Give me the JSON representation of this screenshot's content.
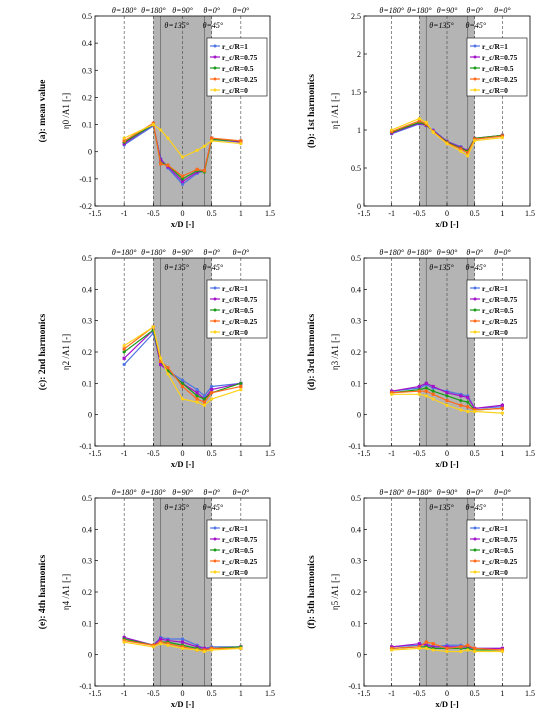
{
  "colors": {
    "r1": "#4f74e3",
    "r075": "#a311c9",
    "r05": "#1a9a1a",
    "r025": "#ff6a1a",
    "r0": "#ffd21a",
    "shade": "#b4b4b4",
    "shade_dark": "#8a8a8a"
  },
  "common": {
    "xlabel": "x/D [-]",
    "x_ticks": [
      "-1.5",
      "-1",
      "-0.5",
      "0",
      "0.5",
      "1",
      "1.5"
    ],
    "xlim": [
      -1.5,
      1.5
    ],
    "theta_labels": [
      "θ=180°",
      "θ=180°",
      "θ=90°",
      "θ=0°",
      "θ=0°"
    ],
    "theta_mid_labels": [
      "θ=135°",
      "θ=45°"
    ],
    "legend_labels": [
      "r_c/R=1",
      "r_c/R=0.75",
      "r_c/R=0.5",
      "r_c/R=0.25",
      "r_c/R=0"
    ],
    "legend_placement": "top-right"
  },
  "chart_data": [
    {
      "type": "line",
      "panel_label": "(a): mean value",
      "ylabel": "η0 /A1 [-]",
      "ylim": [
        -0.2,
        0.5
      ],
      "y_ticks": [
        "-0.2",
        "-0.1",
        "0",
        "0.1",
        "0.2",
        "0.3",
        "0.4",
        "0.5"
      ],
      "x": [
        -1,
        -0.5,
        -0.375,
        -0.25,
        0,
        0.25,
        0.375,
        0.5,
        1
      ],
      "series": [
        {
          "name": "r_c/R=1",
          "values": [
            0.025,
            0.095,
            -0.025,
            -0.06,
            -0.12,
            -0.08,
            -0.07,
            0.045,
            0.035
          ]
        },
        {
          "name": "r_c/R=0.75",
          "values": [
            0.03,
            0.1,
            -0.03,
            -0.055,
            -0.11,
            -0.075,
            -0.07,
            0.05,
            0.035
          ]
        },
        {
          "name": "r_c/R=0.5",
          "values": [
            0.035,
            0.1,
            -0.04,
            -0.05,
            -0.1,
            -0.07,
            -0.075,
            0.045,
            0.04
          ]
        },
        {
          "name": "r_c/R=0.25",
          "values": [
            0.04,
            0.105,
            -0.045,
            -0.05,
            -0.09,
            -0.065,
            -0.07,
            0.05,
            0.04
          ]
        },
        {
          "name": "r_c/R=0",
          "values": [
            0.05,
            0.1,
            0.08,
            0.05,
            -0.02,
            0.005,
            0.02,
            0.04,
            0.03
          ]
        }
      ]
    },
    {
      "type": "line",
      "panel_label": "(b): 1st harmonics",
      "ylabel": "η1 /A1 [-]",
      "ylim": [
        0,
        2.5
      ],
      "y_ticks": [
        "0",
        "0.5",
        "1",
        "1.5",
        "2",
        "2.5"
      ],
      "x": [
        -1,
        -0.5,
        -0.375,
        -0.25,
        0,
        0.25,
        0.375,
        0.5,
        1
      ],
      "series": [
        {
          "name": "r_c/R=1",
          "values": [
            0.95,
            1.08,
            1.06,
            1.0,
            0.85,
            0.78,
            0.72,
            0.88,
            0.92
          ]
        },
        {
          "name": "r_c/R=0.75",
          "values": [
            0.96,
            1.09,
            1.06,
            0.99,
            0.85,
            0.77,
            0.73,
            0.89,
            0.93
          ]
        },
        {
          "name": "r_c/R=0.5",
          "values": [
            0.97,
            1.1,
            1.07,
            0.98,
            0.84,
            0.76,
            0.72,
            0.89,
            0.93
          ]
        },
        {
          "name": "r_c/R=0.25",
          "values": [
            0.98,
            1.12,
            1.08,
            0.98,
            0.83,
            0.75,
            0.7,
            0.88,
            0.92
          ]
        },
        {
          "name": "r_c/R=0",
          "values": [
            1.0,
            1.15,
            1.1,
            0.97,
            0.82,
            0.72,
            0.66,
            0.86,
            0.9
          ]
        }
      ]
    },
    {
      "type": "line",
      "panel_label": "(c): 2nd harmonics",
      "ylabel": "η2 /A1 [-]",
      "ylim": [
        -0.1,
        0.5
      ],
      "y_ticks": [
        "-0.1",
        "0",
        "0.1",
        "0.2",
        "0.3",
        "0.4",
        "0.5"
      ],
      "x": [
        -1,
        -0.5,
        -0.375,
        -0.25,
        0,
        0.25,
        0.375,
        0.5,
        1
      ],
      "series": [
        {
          "name": "r_c/R=1",
          "values": [
            0.16,
            0.26,
            0.16,
            0.14,
            0.11,
            0.08,
            0.06,
            0.09,
            0.1
          ]
        },
        {
          "name": "r_c/R=0.75",
          "values": [
            0.18,
            0.27,
            0.16,
            0.14,
            0.1,
            0.07,
            0.05,
            0.08,
            0.1
          ]
        },
        {
          "name": "r_c/R=0.5",
          "values": [
            0.2,
            0.27,
            0.17,
            0.14,
            0.1,
            0.06,
            0.05,
            0.07,
            0.1
          ]
        },
        {
          "name": "r_c/R=0.25",
          "values": [
            0.21,
            0.28,
            0.17,
            0.15,
            0.09,
            0.05,
            0.04,
            0.07,
            0.09
          ]
        },
        {
          "name": "r_c/R=0",
          "values": [
            0.22,
            0.28,
            0.18,
            0.13,
            0.05,
            0.04,
            0.03,
            0.05,
            0.08
          ]
        }
      ]
    },
    {
      "type": "line",
      "panel_label": "(d): 3rd harmonics",
      "ylabel": "η3 /A1 [-]",
      "ylim": [
        -0.1,
        0.5
      ],
      "y_ticks": [
        "-0.1",
        "0",
        "0.1",
        "0.2",
        "0.3",
        "0.4",
        "0.5"
      ],
      "x": [
        -1,
        -0.5,
        -0.375,
        -0.25,
        0,
        0.25,
        0.375,
        0.5,
        1
      ],
      "series": [
        {
          "name": "r_c/R=1",
          "values": [
            0.075,
            0.085,
            0.095,
            0.085,
            0.075,
            0.065,
            0.06,
            0.02,
            0.025
          ]
        },
        {
          "name": "r_c/R=0.75",
          "values": [
            0.075,
            0.09,
            0.1,
            0.09,
            0.07,
            0.06,
            0.055,
            0.02,
            0.03
          ]
        },
        {
          "name": "r_c/R=0.5",
          "values": [
            0.07,
            0.08,
            0.085,
            0.075,
            0.06,
            0.045,
            0.04,
            0.015,
            0.02
          ]
        },
        {
          "name": "r_c/R=0.25",
          "values": [
            0.07,
            0.075,
            0.075,
            0.065,
            0.045,
            0.03,
            0.025,
            0.015,
            0.02
          ]
        },
        {
          "name": "r_c/R=0",
          "values": [
            0.065,
            0.065,
            0.06,
            0.05,
            0.03,
            0.015,
            0.01,
            0.01,
            0.005
          ]
        }
      ]
    },
    {
      "type": "line",
      "panel_label": "(e): 4th harmonics",
      "ylabel": "η4 /A1 [-]",
      "ylim": [
        -0.1,
        0.5
      ],
      "y_ticks": [
        "-0.1",
        "0",
        "0.1",
        "0.2",
        "0.3",
        "0.4",
        "0.5"
      ],
      "x": [
        -1,
        -0.5,
        -0.375,
        -0.25,
        0,
        0.25,
        0.375,
        0.5,
        1
      ],
      "series": [
        {
          "name": "r_c/R=1",
          "values": [
            0.055,
            0.03,
            0.055,
            0.05,
            0.05,
            0.03,
            0.02,
            0.025,
            0.025
          ]
        },
        {
          "name": "r_c/R=0.75",
          "values": [
            0.055,
            0.03,
            0.05,
            0.045,
            0.04,
            0.025,
            0.02,
            0.02,
            0.025
          ]
        },
        {
          "name": "r_c/R=0.5",
          "values": [
            0.05,
            0.03,
            0.04,
            0.04,
            0.03,
            0.02,
            0.015,
            0.02,
            0.025
          ]
        },
        {
          "name": "r_c/R=0.25",
          "values": [
            0.045,
            0.03,
            0.04,
            0.035,
            0.025,
            0.015,
            0.015,
            0.02,
            0.02
          ]
        },
        {
          "name": "r_c/R=0",
          "values": [
            0.04,
            0.025,
            0.035,
            0.03,
            0.02,
            0.015,
            0.01,
            0.015,
            0.02
          ]
        }
      ]
    },
    {
      "type": "line",
      "panel_label": "(f): 5th harmonics",
      "ylabel": "η5 /A1 [-]",
      "ylim": [
        -0.1,
        0.5
      ],
      "y_ticks": [
        "-0.1",
        "0",
        "0.1",
        "0.2",
        "0.3",
        "0.4",
        "0.5"
      ],
      "x": [
        -1,
        -0.5,
        -0.375,
        -0.25,
        0,
        0.25,
        0.375,
        0.5,
        1
      ],
      "series": [
        {
          "name": "r_c/R=1",
          "values": [
            0.025,
            0.03,
            0.035,
            0.025,
            0.03,
            0.03,
            0.025,
            0.02,
            0.02
          ]
        },
        {
          "name": "r_c/R=0.75",
          "values": [
            0.025,
            0.035,
            0.03,
            0.025,
            0.025,
            0.025,
            0.025,
            0.02,
            0.02
          ]
        },
        {
          "name": "r_c/R=0.5",
          "values": [
            0.02,
            0.025,
            0.025,
            0.02,
            0.02,
            0.02,
            0.02,
            0.015,
            0.015
          ]
        },
        {
          "name": "r_c/R=0.25",
          "values": [
            0.02,
            0.025,
            0.04,
            0.035,
            0.02,
            0.025,
            0.03,
            0.02,
            0.015
          ]
        },
        {
          "name": "r_c/R=0",
          "values": [
            0.015,
            0.02,
            0.02,
            0.015,
            0.01,
            0.01,
            0.015,
            0.01,
            0.01
          ]
        }
      ]
    }
  ]
}
